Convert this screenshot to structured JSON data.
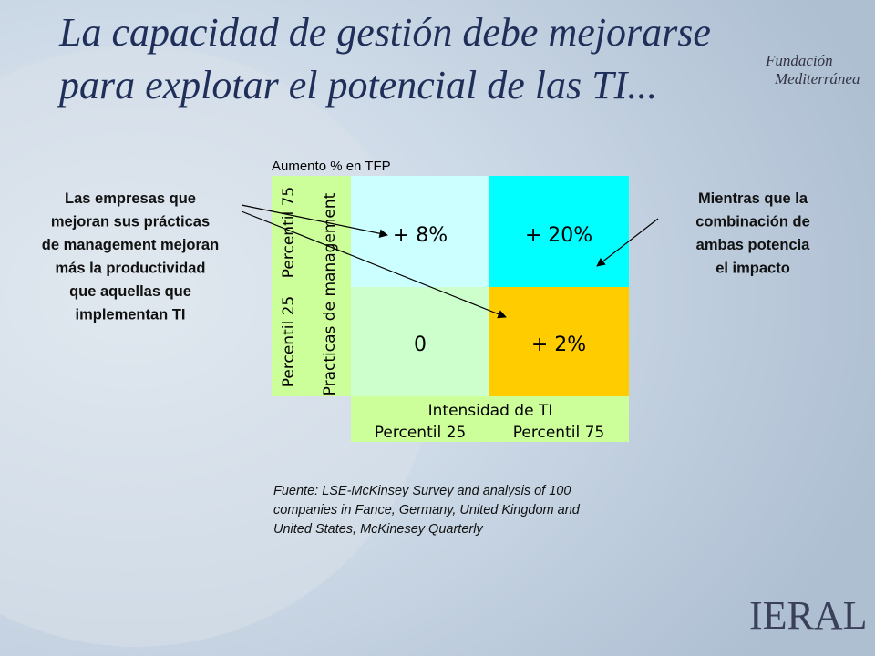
{
  "header": {
    "title_lines": [
      "La capacidad de gestión debe mejorarse",
      "para explotar el potencial de las TI..."
    ],
    "logo_top": [
      "Fundación",
      "Mediterránea"
    ],
    "logo_bottom": "IERAL"
  },
  "matrix": {
    "caption": "Aumento % en TFP",
    "cells": [
      [
        "+ 8%",
        "+ 20%"
      ],
      [
        "0",
        "+ 2%"
      ]
    ],
    "y_axis": {
      "title": "Practicas de management",
      "high": "Percentil 75",
      "low": "Percentil 25"
    },
    "x_axis": {
      "title": "Intensidad de TI",
      "low": "Percentil 25",
      "high": "Percentil 75"
    }
  },
  "left_note": [
    "Las empresas que",
    "mejoran sus prácticas",
    "de management mejoran",
    "más la productividad",
    "que aquellas que",
    "implementan TI"
  ],
  "right_note": [
    "Mientras que la",
    "combinación de",
    "ambas  potencia",
    "el impacto"
  ],
  "source": [
    "Fuente: LSE-McKinsey Survey and analysis of 100",
    "companies in Fance, Germany, United Kingdom and",
    "United States, McKinesey Quarterly"
  ]
}
